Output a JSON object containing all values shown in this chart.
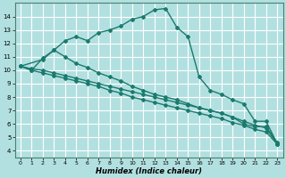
{
  "title": "",
  "xlabel": "Humidex (Indice chaleur)",
  "ylabel": "",
  "xlim": [
    -0.5,
    23.5
  ],
  "ylim": [
    3.5,
    15.0
  ],
  "yticks": [
    4,
    5,
    6,
    7,
    8,
    9,
    10,
    11,
    12,
    13,
    14
  ],
  "xticks": [
    0,
    1,
    2,
    3,
    4,
    5,
    6,
    7,
    8,
    9,
    10,
    11,
    12,
    13,
    14,
    15,
    16,
    17,
    18,
    19,
    20,
    21,
    22,
    23
  ],
  "bg_color": "#b2e0e0",
  "grid_color": "#ffffff",
  "line_color": "#1a7a6e",
  "lines": [
    {
      "x": [
        0,
        1,
        2,
        3,
        4,
        5,
        6,
        7,
        8,
        9,
        10,
        11,
        12,
        13,
        14,
        15,
        16,
        17,
        18,
        19,
        20,
        21,
        22,
        23
      ],
      "y": [
        10.3,
        10.0,
        10.9,
        11.5,
        12.2,
        12.5,
        12.2,
        12.8,
        13.0,
        13.3,
        13.8,
        14.0,
        14.5,
        14.6,
        13.2,
        12.5,
        9.5,
        8.5,
        8.2,
        7.8,
        7.5,
        6.2,
        6.2,
        4.5
      ],
      "marker": "D",
      "markersize": 2.0,
      "linewidth": 1.0
    },
    {
      "x": [
        0,
        2,
        3,
        4,
        5,
        6,
        7,
        8,
        9,
        10,
        11,
        12,
        13,
        14,
        15,
        16,
        17,
        18,
        19,
        20,
        21,
        22,
        23
      ],
      "y": [
        10.3,
        10.8,
        11.5,
        11.0,
        10.5,
        10.2,
        9.8,
        9.5,
        9.2,
        8.8,
        8.5,
        8.2,
        8.0,
        7.8,
        7.5,
        7.2,
        7.0,
        6.8,
        6.5,
        6.0,
        5.8,
        5.8,
        4.6
      ],
      "marker": "D",
      "markersize": 2.0,
      "linewidth": 1.0
    },
    {
      "x": [
        0,
        1,
        2,
        3,
        4,
        5,
        6,
        7,
        8,
        9,
        10,
        11,
        12,
        13,
        14,
        15,
        16,
        17,
        18,
        19,
        20,
        21,
        22,
        23
      ],
      "y": [
        10.3,
        10.1,
        10.0,
        9.8,
        9.6,
        9.4,
        9.2,
        9.0,
        8.8,
        8.6,
        8.4,
        8.2,
        8.0,
        7.8,
        7.6,
        7.4,
        7.2,
        7.0,
        6.8,
        6.5,
        6.2,
        5.9,
        5.7,
        4.5
      ],
      "marker": "D",
      "markersize": 2.0,
      "linewidth": 1.0
    },
    {
      "x": [
        0,
        1,
        2,
        3,
        4,
        5,
        6,
        7,
        8,
        9,
        10,
        11,
        12,
        13,
        14,
        15,
        16,
        17,
        18,
        19,
        20,
        21,
        22,
        23
      ],
      "y": [
        10.3,
        10.0,
        9.8,
        9.6,
        9.4,
        9.2,
        9.0,
        8.8,
        8.5,
        8.3,
        8.0,
        7.8,
        7.6,
        7.4,
        7.2,
        7.0,
        6.8,
        6.6,
        6.4,
        6.1,
        5.9,
        5.6,
        5.4,
        4.5
      ],
      "marker": "D",
      "markersize": 2.0,
      "linewidth": 1.0
    }
  ]
}
